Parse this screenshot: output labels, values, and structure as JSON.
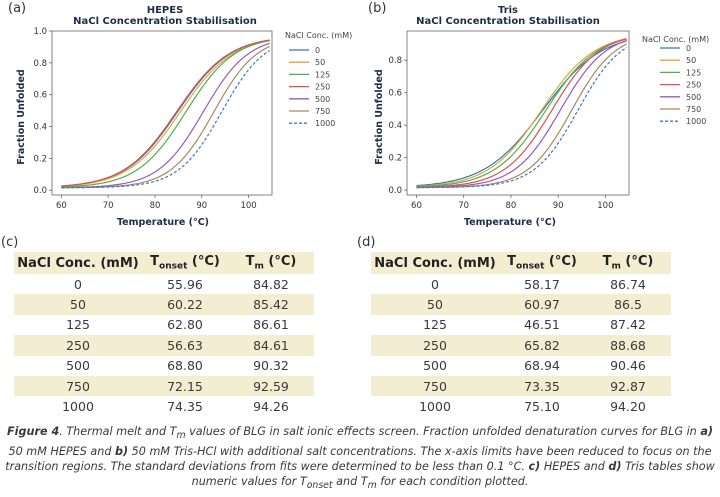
{
  "panel_labels": {
    "a": "(a)",
    "b": "(b)",
    "c": "(c)",
    "d": "(d)"
  },
  "chart_data": [
    {
      "type": "line",
      "title": "HEPES",
      "subtitle": "NaCl Concentration Stabilisation",
      "xlabel": "Temperature (°C)",
      "ylabel": "Fraction Unfolded",
      "xlim": [
        58,
        105
      ],
      "ylim": [
        -0.03,
        1.0
      ],
      "xticks": [
        60,
        70,
        80,
        90,
        100
      ],
      "yticks": [
        "0.0",
        "0.2",
        "0.4",
        "0.6",
        "0.8",
        "1.0"
      ],
      "legend_title": "NaCl Conc. (mM)",
      "legend_position": "right-outside",
      "series": [
        {
          "name": "0",
          "color": "#2b7bba",
          "style": "solid",
          "tm": 84.82,
          "w": 5.6
        },
        {
          "name": "50",
          "color": "#e8a33c",
          "style": "solid",
          "tm": 85.42,
          "w": 5.6
        },
        {
          "name": "125",
          "color": "#4cb050",
          "style": "solid",
          "tm": 86.61,
          "w": 5.2
        },
        {
          "name": "250",
          "color": "#d9534f",
          "style": "solid",
          "tm": 84.61,
          "w": 5.6
        },
        {
          "name": "500",
          "color": "#9b59b6",
          "style": "solid",
          "tm": 90.32,
          "w": 4.8
        },
        {
          "name": "750",
          "color": "#a98b5a",
          "style": "solid",
          "tm": 92.59,
          "w": 4.6
        },
        {
          "name": "1000",
          "color": "#3a78c9",
          "style": "dashed",
          "tm": 94.26,
          "w": 4.6
        }
      ]
    },
    {
      "type": "line",
      "title": "Tris",
      "subtitle": "NaCl Concentration Stabilisation",
      "xlabel": "Temperature (°C)",
      "ylabel": "Fraction Unfolded",
      "xlim": [
        58,
        105
      ],
      "ylim": [
        -0.03,
        0.98
      ],
      "xticks": [
        60,
        70,
        80,
        90,
        100
      ],
      "yticks": [
        "0.0",
        "0.2",
        "0.4",
        "0.6",
        "0.8"
      ],
      "legend_title": "NaCl Conc. (mM)",
      "legend_position": "right-outside",
      "series": [
        {
          "name": "0",
          "color": "#2b7bba",
          "style": "solid",
          "tm": 86.74,
          "w": 6.2
        },
        {
          "name": "50",
          "color": "#e8a33c",
          "style": "solid",
          "tm": 86.5,
          "w": 5.6
        },
        {
          "name": "125",
          "color": "#4cb050",
          "style": "solid",
          "tm": 87.42,
          "w": 5.4
        },
        {
          "name": "250",
          "color": "#d9534f",
          "style": "solid",
          "tm": 88.68,
          "w": 5.0
        },
        {
          "name": "500",
          "color": "#9b59b6",
          "style": "solid",
          "tm": 90.46,
          "w": 4.8
        },
        {
          "name": "750",
          "color": "#a98b5a",
          "style": "solid",
          "tm": 92.87,
          "w": 4.6
        },
        {
          "name": "1000",
          "color": "#3a78c9",
          "style": "dashed",
          "tm": 94.2,
          "w": 4.6
        }
      ]
    }
  ],
  "tables": [
    {
      "header": {
        "c0": "NaCl Conc. (mM)",
        "c1_main": "T",
        "c1_sub": "onset",
        "c1_unit": " (°C)",
        "c2_main": "T",
        "c2_sub": "m",
        "c2_unit": " (°C)"
      },
      "rows": [
        [
          "0",
          "55.96",
          "84.82"
        ],
        [
          "50",
          "60.22",
          "85.42"
        ],
        [
          "125",
          "62.80",
          "86.61"
        ],
        [
          "250",
          "56.63",
          "84.61"
        ],
        [
          "500",
          "68.80",
          "90.32"
        ],
        [
          "750",
          "72.15",
          "92.59"
        ],
        [
          "1000",
          "74.35",
          "94.26"
        ]
      ]
    },
    {
      "header": {
        "c0": "NaCl Conc. (mM)",
        "c1_main": "T",
        "c1_sub": "onset",
        "c1_unit": " (°C)",
        "c2_main": "T",
        "c2_sub": "m",
        "c2_unit": " (°C)"
      },
      "rows": [
        [
          "0",
          "58.17",
          "86.74"
        ],
        [
          "50",
          "60.97",
          "86.5"
        ],
        [
          "125",
          "46.51",
          "87.42"
        ],
        [
          "250",
          "65.82",
          "88.68"
        ],
        [
          "500",
          "68.94",
          "90.46"
        ],
        [
          "750",
          "73.35",
          "92.87"
        ],
        [
          "1000",
          "75.10",
          "94.20"
        ]
      ]
    }
  ],
  "caption": {
    "fig": "Figure 4",
    "s1": ". Thermal melt and T",
    "s1sub": "m",
    "s2": " values of BLG in salt ionic effects screen. Fraction unfolded denaturation curves for BLG in ",
    "a": "a)",
    "s3": " 50 mM HEPES and ",
    "b": "b)",
    "s4": " 50 mM Tris-HCl with additional salt concentrations. The x-axis limits have been reduced to focus on the transition regions. The standard deviations from fits were determined to be less than 0.1 °C. ",
    "c": "c)",
    "s5": " HEPES and ",
    "d": "d)",
    "s6": " Tris tables show numeric values for T",
    "s6sub": "onset",
    "s7": " and T",
    "s7sub": "m",
    "s8": " for each condition plotted."
  }
}
